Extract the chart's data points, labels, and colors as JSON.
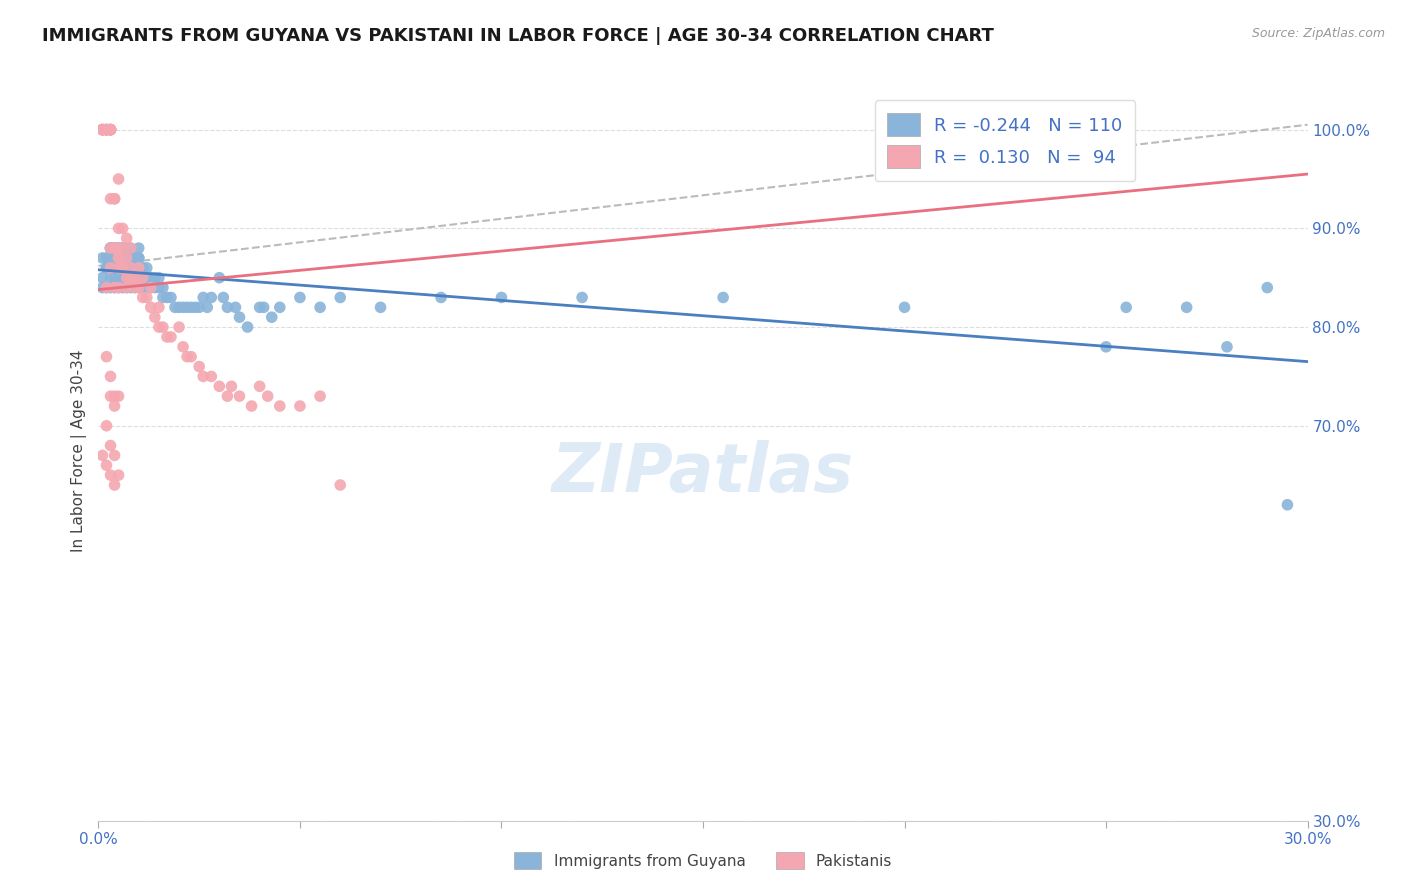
{
  "title": "IMMIGRANTS FROM GUYANA VS PAKISTANI IN LABOR FORCE | AGE 30-34 CORRELATION CHART",
  "source": "Source: ZipAtlas.com",
  "ylabel": "In Labor Force | Age 30-34",
  "xlim": [
    0.0,
    0.3
  ],
  "ylim": [
    0.3,
    1.05
  ],
  "xticks": [
    0.0,
    0.05,
    0.1,
    0.15,
    0.2,
    0.25,
    0.3
  ],
  "yticks": [
    0.3,
    0.7,
    0.8,
    0.9,
    1.0
  ],
  "ytick_labels": [
    "30.0%",
    "70.0%",
    "80.0%",
    "90.0%",
    "100.0%"
  ],
  "xtick_labels": [
    "0.0%",
    "",
    "",
    "",
    "",
    "",
    "30.0%"
  ],
  "blue_color": "#8ab4d9",
  "pink_color": "#f4a7b0",
  "blue_line_color": "#4a7fc1",
  "pink_line_color": "#e87080",
  "dashed_line_color": "#bbbbbb",
  "legend_R_blue": "-0.244",
  "legend_N_blue": "110",
  "legend_R_pink": "0.130",
  "legend_N_pink": "94",
  "legend_label_blue": "R = -0.244   N = 110",
  "legend_label_pink": "R =  0.130   N =  94",
  "watermark": "ZIPatlas",
  "blue_scatter_x": [
    0.001,
    0.001,
    0.002,
    0.002,
    0.002,
    0.003,
    0.003,
    0.003,
    0.003,
    0.003,
    0.003,
    0.004,
    0.004,
    0.004,
    0.004,
    0.004,
    0.004,
    0.004,
    0.005,
    0.005,
    0.005,
    0.005,
    0.005,
    0.005,
    0.005,
    0.006,
    0.006,
    0.006,
    0.006,
    0.006,
    0.006,
    0.007,
    0.007,
    0.007,
    0.007,
    0.007,
    0.008,
    0.008,
    0.008,
    0.008,
    0.008,
    0.009,
    0.009,
    0.009,
    0.01,
    0.01,
    0.01,
    0.01,
    0.01,
    0.011,
    0.011,
    0.011,
    0.012,
    0.012,
    0.012,
    0.013,
    0.013,
    0.014,
    0.014,
    0.015,
    0.015,
    0.016,
    0.016,
    0.017,
    0.018,
    0.019,
    0.02,
    0.021,
    0.022,
    0.023,
    0.024,
    0.025,
    0.026,
    0.027,
    0.028,
    0.03,
    0.031,
    0.032,
    0.034,
    0.035,
    0.037,
    0.04,
    0.041,
    0.043,
    0.045,
    0.05,
    0.055,
    0.06,
    0.07,
    0.085,
    0.1,
    0.12,
    0.155,
    0.2,
    0.25,
    0.255,
    0.27,
    0.28,
    0.29,
    0.295,
    0.001,
    0.002,
    0.003,
    0.004,
    0.005,
    0.006,
    0.007,
    0.008,
    0.009,
    0.01
  ],
  "blue_scatter_y": [
    0.85,
    0.87,
    0.84,
    0.86,
    0.87,
    0.84,
    0.85,
    0.86,
    0.87,
    0.88,
    0.88,
    0.84,
    0.85,
    0.85,
    0.86,
    0.87,
    0.88,
    0.88,
    0.84,
    0.85,
    0.85,
    0.86,
    0.87,
    0.88,
    0.88,
    0.84,
    0.85,
    0.86,
    0.87,
    0.88,
    0.88,
    0.84,
    0.85,
    0.86,
    0.87,
    0.88,
    0.84,
    0.85,
    0.86,
    0.87,
    0.88,
    0.84,
    0.85,
    0.86,
    0.84,
    0.85,
    0.86,
    0.87,
    0.88,
    0.84,
    0.85,
    0.86,
    0.84,
    0.85,
    0.86,
    0.84,
    0.85,
    0.84,
    0.85,
    0.84,
    0.85,
    0.83,
    0.84,
    0.83,
    0.83,
    0.82,
    0.82,
    0.82,
    0.82,
    0.82,
    0.82,
    0.82,
    0.83,
    0.82,
    0.83,
    0.85,
    0.83,
    0.82,
    0.82,
    0.81,
    0.8,
    0.82,
    0.82,
    0.81,
    0.82,
    0.83,
    0.82,
    0.83,
    0.82,
    0.83,
    0.83,
    0.83,
    0.83,
    0.82,
    0.78,
    0.82,
    0.82,
    0.78,
    0.84,
    0.62,
    0.84,
    0.86,
    0.88,
    0.86,
    0.88,
    0.86,
    0.87,
    0.87,
    0.87,
    0.87
  ],
  "pink_scatter_x": [
    0.001,
    0.001,
    0.001,
    0.001,
    0.001,
    0.001,
    0.002,
    0.002,
    0.002,
    0.002,
    0.002,
    0.002,
    0.002,
    0.003,
    0.003,
    0.003,
    0.003,
    0.003,
    0.003,
    0.003,
    0.003,
    0.003,
    0.004,
    0.004,
    0.004,
    0.004,
    0.005,
    0.005,
    0.005,
    0.005,
    0.005,
    0.005,
    0.006,
    0.006,
    0.006,
    0.007,
    0.007,
    0.007,
    0.008,
    0.008,
    0.008,
    0.009,
    0.009,
    0.01,
    0.01,
    0.011,
    0.011,
    0.012,
    0.013,
    0.013,
    0.014,
    0.015,
    0.015,
    0.016,
    0.017,
    0.018,
    0.02,
    0.021,
    0.022,
    0.023,
    0.025,
    0.026,
    0.028,
    0.03,
    0.032,
    0.033,
    0.035,
    0.038,
    0.04,
    0.042,
    0.045,
    0.05,
    0.055,
    0.06,
    0.002,
    0.003,
    0.004,
    0.005,
    0.006,
    0.007,
    0.002,
    0.003,
    0.003,
    0.004,
    0.004,
    0.005,
    0.002,
    0.003,
    0.004,
    0.005,
    0.001,
    0.002,
    0.003,
    0.004
  ],
  "pink_scatter_y": [
    1.0,
    1.0,
    1.0,
    1.0,
    1.0,
    1.0,
    1.0,
    1.0,
    1.0,
    1.0,
    1.0,
    1.0,
    1.0,
    1.0,
    1.0,
    1.0,
    1.0,
    1.0,
    1.0,
    1.0,
    0.88,
    0.93,
    0.88,
    0.88,
    0.93,
    0.93,
    0.88,
    0.84,
    0.86,
    0.87,
    0.9,
    0.95,
    0.86,
    0.88,
    0.9,
    0.85,
    0.87,
    0.89,
    0.85,
    0.86,
    0.88,
    0.84,
    0.85,
    0.84,
    0.86,
    0.83,
    0.85,
    0.83,
    0.82,
    0.84,
    0.81,
    0.8,
    0.82,
    0.8,
    0.79,
    0.79,
    0.8,
    0.78,
    0.77,
    0.77,
    0.76,
    0.75,
    0.75,
    0.74,
    0.73,
    0.74,
    0.73,
    0.72,
    0.74,
    0.73,
    0.72,
    0.72,
    0.73,
    0.64,
    0.84,
    0.86,
    0.84,
    0.87,
    0.86,
    0.84,
    0.77,
    0.75,
    0.73,
    0.72,
    0.73,
    0.73,
    0.7,
    0.68,
    0.67,
    0.65,
    0.67,
    0.66,
    0.65,
    0.64
  ],
  "blue_trend_x": [
    0.0,
    0.3
  ],
  "blue_trend_y": [
    0.858,
    0.765
  ],
  "pink_trend_x": [
    0.0,
    0.3
  ],
  "pink_trend_y": [
    0.838,
    0.955
  ],
  "dashed_trend_x": [
    0.0,
    0.3
  ],
  "dashed_trend_y": [
    0.862,
    1.005
  ],
  "grid_color": "#dddddd",
  "axis_color": "#4472c4",
  "title_fontsize": 13,
  "label_fontsize": 11,
  "tick_fontsize": 11,
  "legend_bottom_labels": [
    "Immigrants from Guyana",
    "Pakistanis"
  ]
}
